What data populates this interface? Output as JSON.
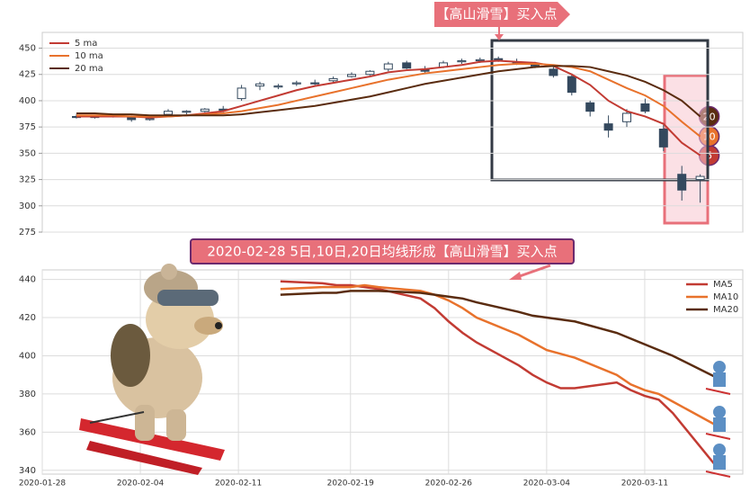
{
  "chart_data": [
    {
      "type": "candlestick",
      "ylim": [
        275,
        465
      ],
      "yticks": [
        275,
        300,
        325,
        350,
        375,
        400,
        425,
        450
      ],
      "grid": true,
      "legend": "upper left",
      "up_color": "#ffffff",
      "down_color": "#34495e",
      "open": [
        385,
        384,
        385,
        385,
        382,
        387,
        389,
        390,
        392,
        402,
        414,
        413,
        416,
        417,
        419,
        423,
        425,
        430,
        436,
        430,
        432,
        437,
        438,
        440,
        437,
        435,
        430,
        423,
        398,
        378,
        380,
        397,
        373,
        330,
        325
      ],
      "high": [
        387,
        386,
        387,
        386,
        384,
        392,
        391,
        393,
        395,
        415,
        418,
        416,
        419,
        420,
        423,
        427,
        429,
        437,
        438,
        433,
        438,
        440,
        441,
        442,
        440,
        437,
        432,
        426,
        400,
        386,
        392,
        402,
        377,
        338,
        330
      ],
      "low": [
        383,
        383,
        384,
        380,
        381,
        386,
        387,
        389,
        389,
        400,
        410,
        411,
        414,
        415,
        417,
        422,
        424,
        428,
        430,
        426,
        431,
        435,
        436,
        437,
        434,
        431,
        422,
        405,
        385,
        365,
        375,
        388,
        352,
        305,
        303
      ],
      "close": [
        384,
        385,
        386,
        382,
        383,
        390,
        390,
        392,
        391,
        412,
        416,
        414,
        417,
        416,
        421,
        425,
        428,
        435,
        431,
        428,
        436,
        438,
        439,
        438,
        436,
        433,
        424,
        408,
        390,
        372,
        388,
        390,
        356,
        315,
        328
      ],
      "series": [
        {
          "name": "5 ma",
          "color": "#c23b33",
          "values": [
            385,
            385,
            385,
            385,
            384,
            385,
            386,
            388,
            390,
            395,
            400,
            405,
            410,
            414,
            417,
            420,
            423,
            427,
            429,
            430,
            432,
            434,
            437,
            438,
            437,
            436,
            433,
            425,
            415,
            400,
            390,
            385,
            378,
            360,
            348
          ]
        },
        {
          "name": "10 ma",
          "color": "#e8722c",
          "values": [
            386,
            386,
            386,
            385,
            385,
            385,
            386,
            387,
            388,
            390,
            393,
            396,
            400,
            404,
            408,
            412,
            416,
            420,
            423,
            426,
            428,
            430,
            432,
            434,
            435,
            435,
            434,
            432,
            428,
            420,
            412,
            405,
            395,
            380,
            366
          ]
        },
        {
          "name": "20 ma",
          "color": "#5a2c10",
          "values": [
            388,
            388,
            387,
            387,
            386,
            386,
            386,
            386,
            386,
            387,
            389,
            391,
            393,
            395,
            398,
            401,
            404,
            408,
            412,
            416,
            419,
            422,
            425,
            428,
            430,
            432,
            433,
            433,
            432,
            428,
            424,
            418,
            410,
            400,
            385
          ]
        }
      ],
      "end_labels": [
        "5",
        "10",
        "20"
      ],
      "annotation": "【高山滑雪】买入点"
    },
    {
      "type": "line",
      "annotation": "2020-02-28 5日,10日,20日均线形成【高山滑雪】买入点",
      "x": [
        "2020-02-14",
        "2020-02-17",
        "2020-02-18",
        "2020-02-19",
        "2020-02-20",
        "2020-02-21",
        "2020-02-24",
        "2020-02-25",
        "2020-02-26",
        "2020-02-27",
        "2020-02-28",
        "2020-03-02",
        "2020-03-03",
        "2020-03-04",
        "2020-03-05",
        "2020-03-06",
        "2020-03-09",
        "2020-03-10",
        "2020-03-11",
        "2020-03-12",
        "2020-03-13",
        "2020-03-16"
      ],
      "xlim": [
        "2020-01-28",
        "2020-03-18"
      ],
      "xticks": [
        "2020-01-28",
        "2020-02-04",
        "2020-02-11",
        "2020-02-19",
        "2020-02-26",
        "2020-03-04",
        "2020-03-11"
      ],
      "ylim": [
        338,
        445
      ],
      "yticks": [
        340,
        360,
        380,
        400,
        420,
        440
      ],
      "grid": true,
      "legend": "upper right",
      "series": [
        {
          "name": "MA5",
          "color": "#c23b33",
          "values": [
            439,
            438,
            437,
            437,
            436,
            435,
            430,
            425,
            418,
            412,
            407,
            395,
            390,
            386,
            383,
            383,
            386,
            382,
            379,
            377,
            370,
            343
          ]
        },
        {
          "name": "MA10",
          "color": "#e8722c",
          "values": [
            435,
            436,
            436,
            436,
            437,
            436,
            434,
            432,
            429,
            425,
            420,
            411,
            407,
            403,
            401,
            399,
            390,
            385,
            382,
            380,
            376,
            364
          ]
        },
        {
          "name": "MA20",
          "color": "#5a2c10",
          "values": [
            432,
            433,
            433,
            434,
            434,
            434,
            433,
            432,
            431,
            430,
            428,
            423,
            421,
            420,
            419,
            418,
            412,
            409,
            406,
            403,
            400,
            389
          ]
        }
      ]
    }
  ]
}
